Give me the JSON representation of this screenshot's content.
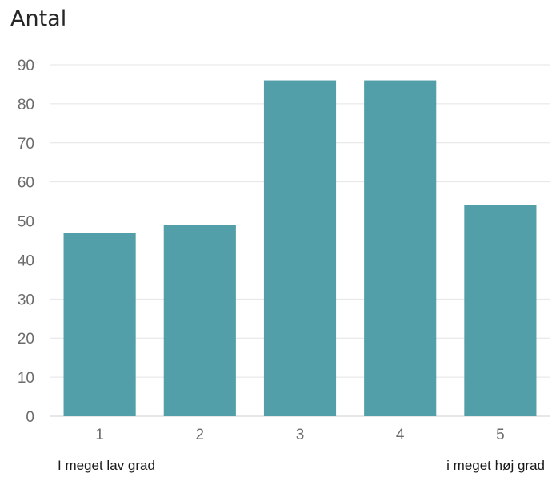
{
  "chart_data": {
    "type": "bar",
    "title": "Antal",
    "xlabel": "",
    "ylabel": "",
    "categories": [
      "1",
      "2",
      "3",
      "4",
      "5"
    ],
    "values": [
      47,
      49,
      86,
      86,
      54
    ],
    "ylim": [
      0,
      90
    ],
    "yticks": [
      0,
      10,
      20,
      30,
      40,
      50,
      60,
      70,
      80,
      90
    ],
    "grid": true,
    "bar_color": "#529ea9"
  },
  "scale_labels": {
    "low": "I meget lav grad",
    "high": "i meget høj grad"
  }
}
